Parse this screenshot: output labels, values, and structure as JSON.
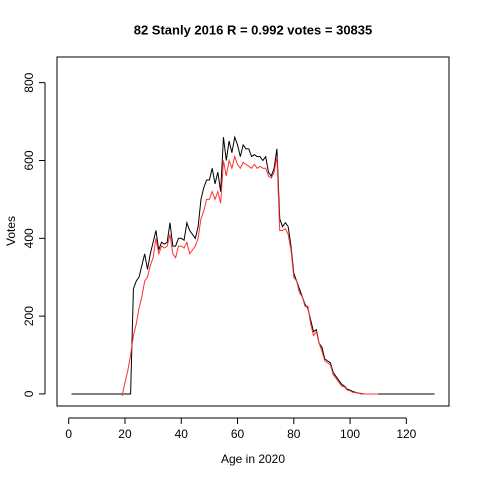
{
  "chart_data": {
    "type": "line",
    "title": "82 Stanly 2016 R = 0.992 votes = 30835",
    "x_label": "Age in 2020",
    "y_label": "Votes",
    "xlim": [
      -4.16,
      135.16
    ],
    "ylim": [
      -31,
      866
    ],
    "xticks": [
      0,
      20,
      40,
      60,
      80,
      100,
      120
    ],
    "yticks": [
      0,
      200,
      400,
      600,
      800
    ],
    "series": [
      {
        "color": "#000000",
        "x": [
          1,
          2,
          3,
          4,
          5,
          6,
          7,
          8,
          9,
          10,
          11,
          12,
          13,
          14,
          15,
          16,
          17,
          18,
          19,
          20,
          21,
          22,
          23,
          24,
          25,
          26,
          27,
          28,
          29,
          30,
          31,
          32,
          33,
          34,
          35,
          36,
          37,
          38,
          39,
          40,
          41,
          42,
          43,
          44,
          45,
          46,
          47,
          48,
          49,
          50,
          51,
          52,
          53,
          54,
          55,
          56,
          57,
          58,
          59,
          60,
          61,
          62,
          63,
          64,
          65,
          66,
          67,
          68,
          69,
          70,
          71,
          72,
          73,
          74,
          75,
          76,
          77,
          78,
          79,
          80,
          81,
          82,
          83,
          84,
          85,
          86,
          87,
          88,
          89,
          90,
          91,
          92,
          93,
          94,
          95,
          96,
          97,
          98,
          99,
          100,
          101,
          102,
          103,
          104,
          105,
          106,
          107,
          108,
          109,
          110,
          111,
          112,
          113,
          114,
          115,
          116,
          117,
          118,
          119,
          120,
          121,
          122,
          123,
          124,
          125,
          126,
          127,
          128,
          129,
          130
        ],
        "values": [
          0,
          0,
          0,
          0,
          0,
          0,
          0,
          0,
          0,
          0,
          0,
          0,
          0,
          0,
          0,
          0,
          0,
          0,
          0,
          0,
          0,
          0,
          270,
          290,
          300,
          330,
          360,
          320,
          360,
          390,
          420,
          370,
          390,
          385,
          390,
          440,
          380,
          380,
          400,
          400,
          395,
          440,
          420,
          410,
          400,
          430,
          500,
          530,
          550,
          550,
          580,
          540,
          570,
          520,
          660,
          600,
          650,
          620,
          660,
          640,
          610,
          640,
          630,
          630,
          610,
          615,
          610,
          610,
          600,
          610,
          570,
          560,
          580,
          630,
          450,
          430,
          440,
          430,
          380,
          310,
          290,
          270,
          250,
          230,
          220,
          190,
          160,
          165,
          130,
          120,
          90,
          85,
          80,
          55,
          45,
          35,
          25,
          20,
          12,
          10,
          6,
          4,
          2,
          1,
          0,
          0,
          0,
          0,
          0,
          0,
          0,
          0,
          0,
          0,
          0,
          0,
          0,
          0,
          0,
          0,
          0,
          0,
          0,
          0,
          0,
          0,
          0,
          0,
          0,
          0
        ]
      },
      {
        "color": "#ff3030",
        "x": [
          19,
          20,
          21,
          22,
          23,
          24,
          25,
          26,
          27,
          28,
          29,
          30,
          31,
          32,
          33,
          34,
          35,
          36,
          37,
          38,
          39,
          40,
          41,
          42,
          43,
          44,
          45,
          46,
          47,
          48,
          49,
          50,
          51,
          52,
          53,
          54,
          55,
          56,
          57,
          58,
          59,
          60,
          61,
          62,
          63,
          64,
          65,
          66,
          67,
          68,
          69,
          70,
          71,
          72,
          73,
          74,
          75,
          76,
          77,
          78,
          79,
          80,
          81,
          82,
          83,
          84,
          85,
          86,
          87,
          88,
          89,
          90,
          91,
          92,
          93,
          94,
          95,
          96,
          97,
          98,
          99,
          100,
          101,
          102,
          103,
          104,
          105,
          106,
          107,
          108,
          109,
          110
        ],
        "values": [
          -5,
          30,
          60,
          100,
          150,
          180,
          220,
          250,
          290,
          300,
          330,
          350,
          400,
          360,
          380,
          375,
          380,
          410,
          360,
          350,
          380,
          380,
          375,
          390,
          360,
          370,
          380,
          400,
          450,
          470,
          500,
          500,
          520,
          500,
          520,
          490,
          600,
          560,
          600,
          580,
          610,
          590,
          580,
          595,
          590,
          585,
          580,
          590,
          580,
          585,
          580,
          580,
          560,
          555,
          570,
          610,
          420,
          420,
          425,
          410,
          370,
          300,
          290,
          260,
          250,
          225,
          225,
          180,
          150,
          160,
          130,
          110,
          85,
          80,
          75,
          50,
          40,
          30,
          20,
          18,
          10,
          8,
          4,
          3,
          2,
          0,
          0,
          0,
          0,
          0,
          0,
          0
        ]
      }
    ]
  }
}
